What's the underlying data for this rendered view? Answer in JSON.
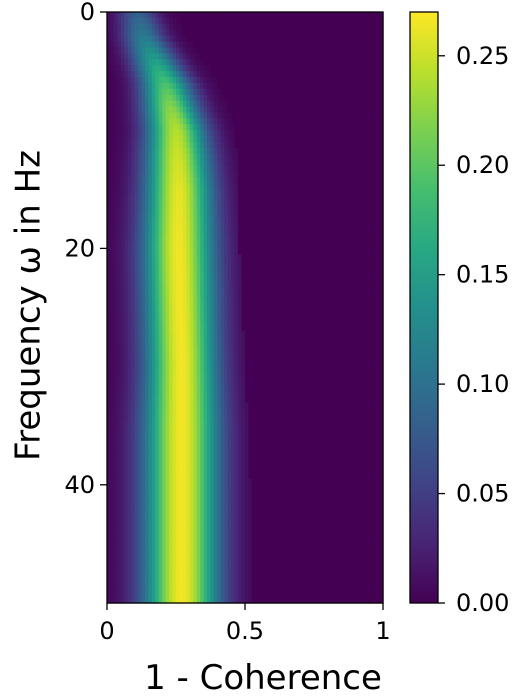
{
  "chart_data": {
    "type": "heatmap",
    "title": "",
    "xlabel": "1 - Coherence",
    "ylabel": "Frequency ω in Hz",
    "xlim": [
      0,
      1
    ],
    "ylim": [
      0,
      50
    ],
    "y_inverted": true,
    "x_ticks": [
      "0",
      "0.5",
      "1"
    ],
    "x_tick_values": [
      0,
      0.5,
      1
    ],
    "y_ticks": [
      "0",
      "20",
      "40"
    ],
    "y_tick_values": [
      0,
      20,
      40
    ],
    "colormap": "viridis",
    "colorbar": {
      "vmin": 0,
      "vmax": 0.27,
      "ticks": [
        "0.00",
        "0.05",
        "0.10",
        "0.15",
        "0.20",
        "0.25"
      ],
      "tick_values": [
        0,
        0.05,
        0.1,
        0.15,
        0.2,
        0.25
      ]
    },
    "ridge": {
      "description_frequency_hz": [
        0,
        2,
        4,
        6,
        8,
        10,
        12,
        15,
        20,
        25,
        30,
        35,
        40,
        45,
        50
      ],
      "peak_x": [
        0.11,
        0.13,
        0.17,
        0.21,
        0.23,
        0.25,
        0.255,
        0.26,
        0.26,
        0.265,
        0.27,
        0.27,
        0.27,
        0.27,
        0.27
      ],
      "peak_value": [
        0.08,
        0.11,
        0.15,
        0.19,
        0.22,
        0.24,
        0.25,
        0.26,
        0.265,
        0.265,
        0.265,
        0.265,
        0.265,
        0.265,
        0.265
      ],
      "width": [
        0.05,
        0.055,
        0.06,
        0.065,
        0.07,
        0.075,
        0.08,
        0.085,
        0.09,
        0.09,
        0.09,
        0.095,
        0.095,
        0.095,
        0.095
      ],
      "right_edge_x": [
        0.26,
        0.28,
        0.35,
        0.4,
        0.44,
        0.46,
        0.47,
        0.48,
        0.48,
        0.49,
        0.5,
        0.51,
        0.52,
        0.52,
        0.53
      ]
    }
  }
}
